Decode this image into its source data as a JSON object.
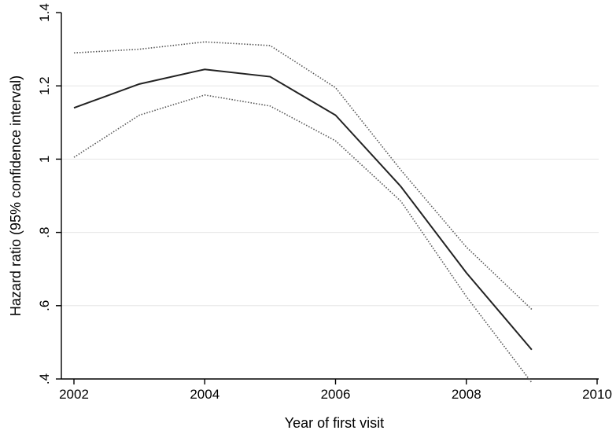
{
  "chart_data": {
    "type": "line",
    "title": "",
    "xlabel": "Year of first visit",
    "ylabel": "Hazard ratio (95% confidence interval)",
    "xlim": [
      2002,
      2010
    ],
    "ylim": [
      0.4,
      1.4
    ],
    "x_ticks": [
      2002,
      2004,
      2006,
      2008,
      2010
    ],
    "x_tick_labels": [
      "2002",
      "2004",
      "2006",
      "2008",
      "2010"
    ],
    "y_ticks": [
      0.4,
      0.6,
      0.8,
      1.0,
      1.2,
      1.4
    ],
    "y_tick_labels": [
      ".4",
      ".6",
      ".8",
      "1",
      "1.2",
      "1.4"
    ],
    "grid": true,
    "x": [
      2002,
      2003,
      2004,
      2005,
      2006,
      2007,
      2008,
      2009
    ],
    "series": [
      {
        "values": [
          1.29,
          1.3,
          1.32,
          1.31,
          1.195,
          0.97,
          0.76,
          0.59
        ],
        "color": "#555555",
        "style": "dotted"
      },
      {
        "values": [
          1.14,
          1.205,
          1.245,
          1.225,
          1.12,
          0.925,
          0.69,
          0.48
        ],
        "color": "#222222",
        "style": "solid"
      },
      {
        "values": [
          1.005,
          1.12,
          1.175,
          1.145,
          1.05,
          0.885,
          0.625,
          0.39
        ],
        "color": "#555555",
        "style": "dotted"
      }
    ]
  }
}
